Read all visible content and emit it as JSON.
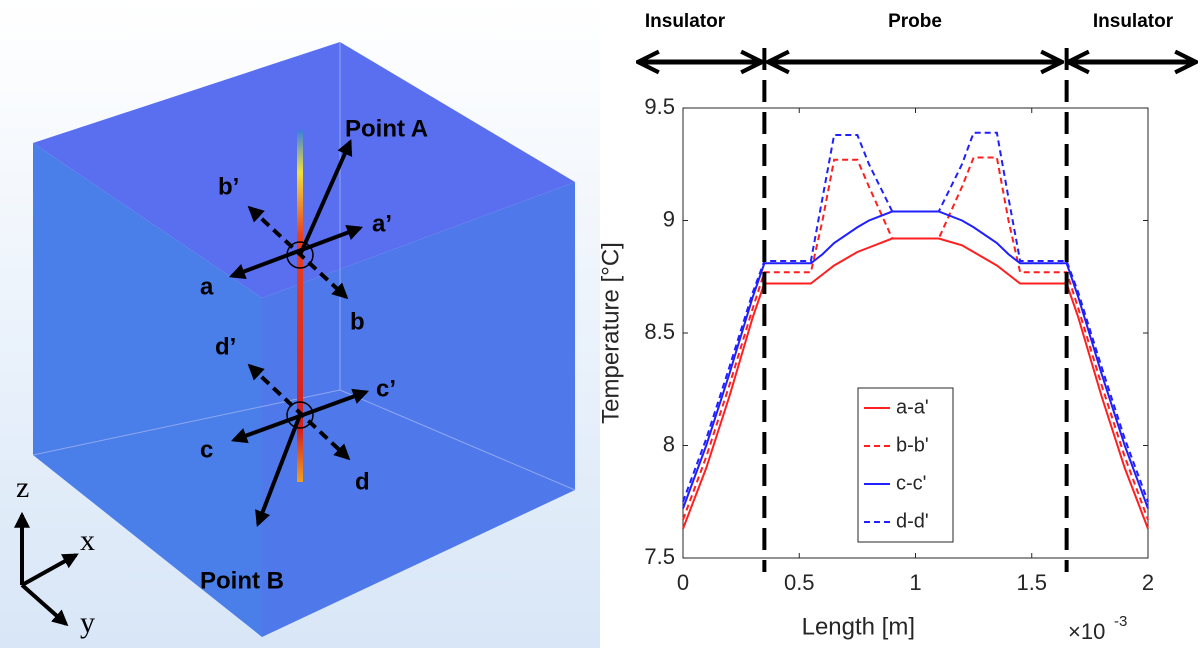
{
  "diagram": {
    "labels": [
      "Point A",
      "Point B",
      "a",
      "a’",
      "b",
      "b’",
      "c",
      "c’",
      "d",
      "d’"
    ],
    "axes": [
      "z",
      "x",
      "y"
    ]
  },
  "chart_data": {
    "type": "line",
    "xlabel": "Length [m]",
    "ylabel": "Temperature [°C]",
    "x_multiplier": "×10",
    "x_exponent": "-3",
    "x": [
      0,
      0.1,
      0.2,
      0.3,
      0.35,
      0.55,
      0.6,
      0.65,
      0.75,
      0.8,
      0.9,
      1.1,
      1.2,
      1.25,
      1.35,
      1.4,
      1.45,
      1.65,
      1.7,
      1.8,
      1.9,
      2
    ],
    "series": [
      {
        "name": "a-a'",
        "color": "#ff1f1f",
        "line_style": "solid",
        "values": [
          7.63,
          7.9,
          8.22,
          8.57,
          8.72,
          8.72,
          8.76,
          8.8,
          8.86,
          8.88,
          8.92,
          8.92,
          8.89,
          8.86,
          8.8,
          8.76,
          8.72,
          8.72,
          8.57,
          8.22,
          7.9,
          7.63
        ]
      },
      {
        "name": "b-b'",
        "color": "#ff1f1f",
        "line_style": "dashed",
        "values": [
          7.67,
          7.95,
          8.27,
          8.61,
          8.77,
          8.77,
          9.0,
          9.27,
          9.27,
          9.15,
          8.92,
          8.92,
          9.15,
          9.28,
          9.28,
          9.0,
          8.77,
          8.77,
          8.61,
          8.27,
          7.95,
          7.67
        ]
      },
      {
        "name": "c-c'",
        "color": "#1f1fff",
        "line_style": "solid",
        "values": [
          7.72,
          8.0,
          8.32,
          8.66,
          8.81,
          8.81,
          8.85,
          8.9,
          8.97,
          9.0,
          9.04,
          9.04,
          9.0,
          8.97,
          8.9,
          8.85,
          8.81,
          8.81,
          8.66,
          8.32,
          8.0,
          7.72
        ]
      },
      {
        "name": "d-d'",
        "color": "#1f1fff",
        "line_style": "dashed",
        "values": [
          7.75,
          8.03,
          8.35,
          8.68,
          8.82,
          8.82,
          9.1,
          9.38,
          9.38,
          9.25,
          9.04,
          9.04,
          9.25,
          9.39,
          9.39,
          9.1,
          8.82,
          8.82,
          8.68,
          8.35,
          8.03,
          7.75
        ]
      }
    ],
    "xlim": [
      0,
      2
    ],
    "xticks": [
      0,
      0.5,
      1,
      1.5,
      2
    ],
    "ylim": [
      7.5,
      9.5
    ],
    "yticks": [
      7.5,
      8,
      8.5,
      9,
      9.5
    ],
    "grid": false,
    "legend": "lower center",
    "vlines": [
      0.35,
      1.65
    ],
    "annotations": [
      "Insulator",
      "Probe",
      "Insulator"
    ]
  }
}
